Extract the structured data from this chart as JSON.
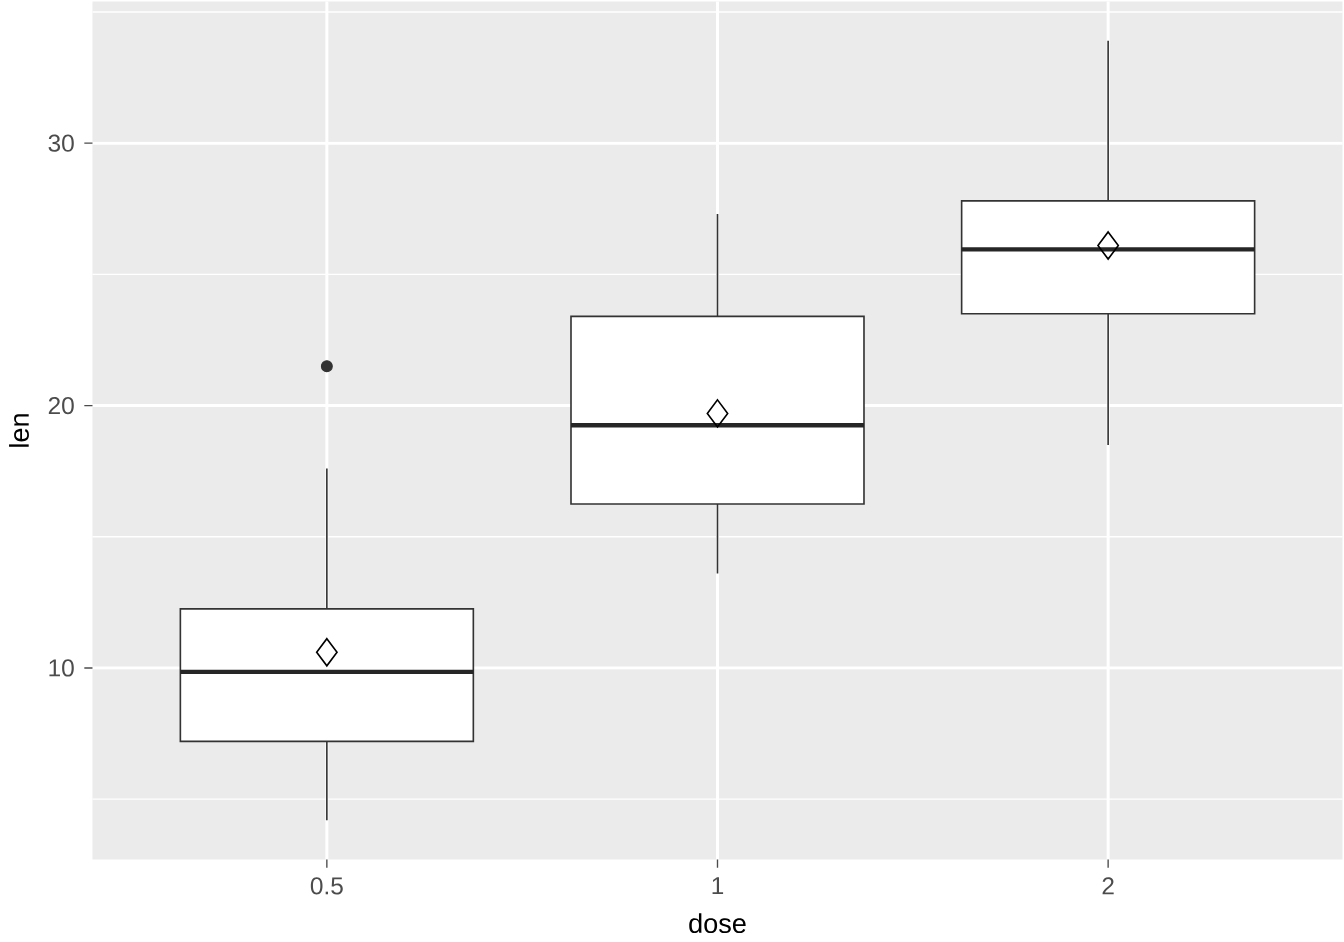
{
  "chart_data": {
    "type": "box",
    "xlabel": "dose",
    "ylabel": "len",
    "categories": [
      "0.5",
      "1",
      "2"
    ],
    "boxes": [
      {
        "low": 4.2,
        "q1": 7.2,
        "median": 9.85,
        "q3": 12.25,
        "high": 17.6,
        "mean": 10.6,
        "outliers": [
          21.5
        ]
      },
      {
        "low": 13.6,
        "q1": 16.25,
        "median": 19.25,
        "q3": 23.4,
        "high": 27.3,
        "mean": 19.7
      },
      {
        "low": 18.5,
        "q1": 23.5,
        "median": 25.95,
        "q3": 27.8,
        "high": 33.9,
        "mean": 26.1
      }
    ],
    "ylim": [
      2.7,
      35.4
    ],
    "yticks": [
      {
        "value": 5,
        "label": null
      },
      10,
      {
        "value": 15,
        "label": null
      },
      20,
      {
        "value": 25,
        "label": null
      },
      30,
      {
        "value": 35,
        "label": null
      }
    ],
    "grid": true
  }
}
